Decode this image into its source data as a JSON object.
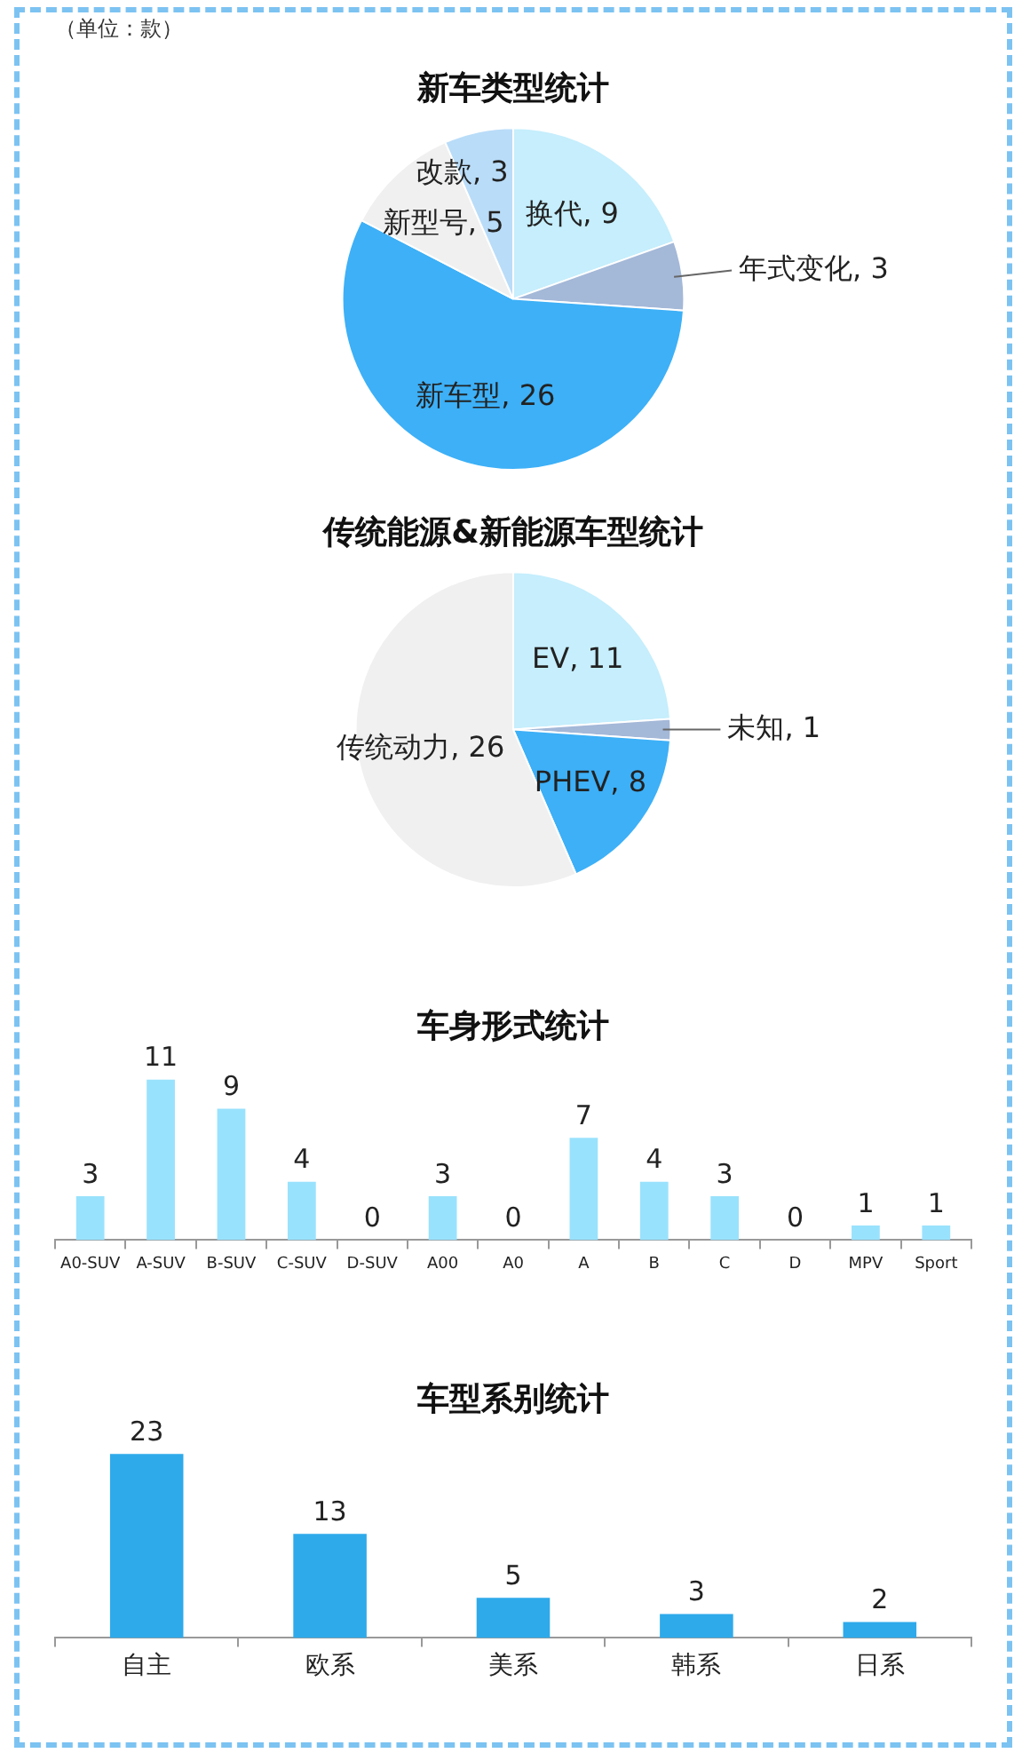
{
  "chart_data": [
    {
      "type": "pie",
      "title": "新车类型统计",
      "annotations": [
        "（单位：款）"
      ],
      "categories": [
        "换代",
        "年式变化",
        "新车型",
        "新型号",
        "改款"
      ],
      "values": [
        9,
        3,
        26,
        5,
        3
      ],
      "colors": [
        "#c6eefc",
        "#a4b8d8",
        "#3db0f7",
        "#f0f0f0",
        "#b9dcf8"
      ],
      "value_labels": [
        ", 9",
        ", 3",
        ", 26",
        ", 5",
        ", 3"
      ],
      "legend": false
    },
    {
      "type": "pie",
      "title": "传统能源&新能源车型统计",
      "categories": [
        "EV",
        "未知",
        "PHEV",
        "传统动力"
      ],
      "values": [
        11,
        1,
        8,
        26
      ],
      "colors": [
        "#c6eefc",
        "#a4b8d8",
        "#3db0f7",
        "#f0f0f0"
      ],
      "value_labels": [
        ", 11",
        ", 1",
        ", 8",
        ", 26"
      ],
      "legend": false
    },
    {
      "type": "bar",
      "title": "车身形式统计",
      "categories": [
        "A0-SUV",
        "A-SUV",
        "B-SUV",
        "C-SUV",
        "D-SUV",
        "A00",
        "A0",
        "A",
        "B",
        "C",
        "D",
        "MPV",
        "Sport"
      ],
      "values": [
        3,
        11,
        9,
        4,
        0,
        3,
        0,
        7,
        4,
        3,
        0,
        1,
        1
      ],
      "color": "#99e2fd",
      "data_labels": true,
      "tick_labels": "x",
      "grid": false,
      "legend": false
    },
    {
      "type": "bar",
      "title": "车型系别统计",
      "categories": [
        "自主",
        "欧系",
        "美系",
        "韩系",
        "日系"
      ],
      "values": [
        23,
        13,
        5,
        3,
        2
      ],
      "color": "#2eaaeb",
      "data_labels": true,
      "tick_labels": "x",
      "grid": false,
      "legend": false
    }
  ]
}
